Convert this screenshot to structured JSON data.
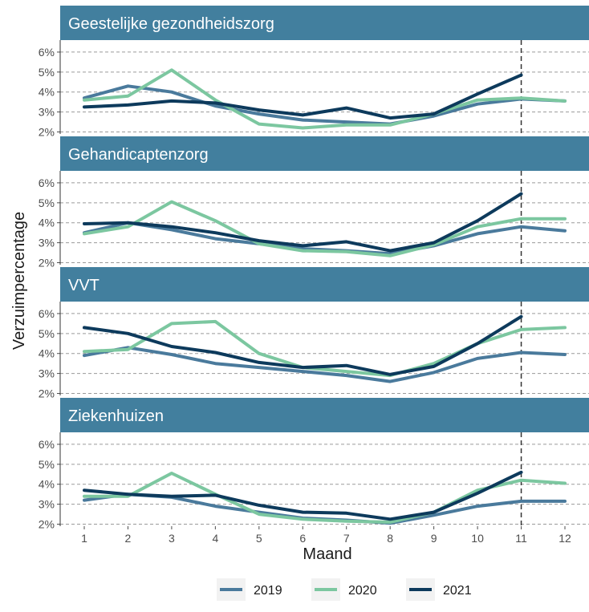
{
  "chart_data": {
    "type": "line",
    "xlabel": "Maand",
    "ylabel": "Verzuimpercentage",
    "x": [
      1,
      2,
      3,
      4,
      5,
      6,
      7,
      8,
      9,
      10,
      11,
      12
    ],
    "x_ticks": [
      "1",
      "2",
      "3",
      "4",
      "5",
      "6",
      "7",
      "8",
      "9",
      "10",
      "11",
      "12"
    ],
    "y_ticks": [
      "2%",
      "3%",
      "4%",
      "5%",
      "6%"
    ],
    "ylim": [
      1.9,
      6.6
    ],
    "grid": true,
    "legend_position": "bottom",
    "vline_x": 11,
    "colors": {
      "strip": "#427f9e",
      "2019": "#4a7a9c",
      "2020": "#7cc7a0",
      "2021": "#0d3a5c",
      "grid": "#9a9a9a",
      "vline": "#333333"
    },
    "legend": [
      "2019",
      "2020",
      "2021"
    ],
    "panels": [
      {
        "title": "Geestelijke gezondheidszorg",
        "series": [
          {
            "name": "2019",
            "values": [
              3.7,
              4.3,
              4.0,
              3.3,
              2.9,
              2.6,
              2.5,
              2.4,
              2.8,
              3.4,
              3.65,
              3.55
            ]
          },
          {
            "name": "2020",
            "values": [
              3.6,
              3.8,
              5.1,
              3.6,
              2.4,
              2.2,
              2.35,
              2.35,
              2.9,
              3.6,
              3.7,
              3.55
            ]
          },
          {
            "name": "2021",
            "values": [
              3.25,
              3.35,
              3.55,
              3.45,
              3.1,
              2.85,
              3.2,
              2.7,
              2.9,
              3.9,
              4.85,
              null
            ]
          }
        ]
      },
      {
        "title": "Gehandicaptenzorg",
        "series": [
          {
            "name": "2019",
            "values": [
              3.5,
              4.0,
              3.65,
              3.2,
              2.95,
              2.7,
              2.6,
              2.45,
              2.85,
              3.45,
              3.8,
              3.6
            ]
          },
          {
            "name": "2020",
            "values": [
              3.45,
              3.8,
              5.05,
              4.1,
              2.95,
              2.6,
              2.55,
              2.35,
              2.9,
              3.8,
              4.2,
              4.2
            ]
          },
          {
            "name": "2021",
            "values": [
              3.95,
              4.0,
              3.8,
              3.5,
              3.1,
              2.85,
              3.05,
              2.6,
              3.0,
              4.1,
              5.45,
              null
            ]
          }
        ]
      },
      {
        "title": "VVT",
        "series": [
          {
            "name": "2019",
            "values": [
              3.9,
              4.3,
              3.95,
              3.5,
              3.3,
              3.1,
              2.9,
              2.6,
              3.05,
              3.75,
              4.05,
              3.95
            ]
          },
          {
            "name": "2020",
            "values": [
              4.1,
              4.2,
              5.5,
              5.6,
              4.0,
              3.3,
              3.1,
              2.9,
              3.5,
              4.5,
              5.2,
              5.3
            ]
          },
          {
            "name": "2021",
            "values": [
              5.3,
              5.0,
              4.35,
              4.05,
              3.55,
              3.3,
              3.4,
              2.95,
              3.35,
              4.5,
              5.85,
              null
            ]
          }
        ]
      },
      {
        "title": "Ziekenhuizen",
        "series": [
          {
            "name": "2019",
            "values": [
              3.2,
              3.5,
              3.35,
              2.9,
              2.6,
              2.3,
              2.2,
              2.05,
              2.45,
              2.9,
              3.15,
              3.15
            ]
          },
          {
            "name": "2020",
            "values": [
              3.4,
              3.4,
              4.55,
              3.5,
              2.5,
              2.25,
              2.15,
              2.1,
              2.6,
              3.7,
              4.2,
              4.05
            ]
          },
          {
            "name": "2021",
            "values": [
              3.7,
              3.5,
              3.4,
              3.45,
              2.95,
              2.6,
              2.55,
              2.25,
              2.6,
              3.55,
              4.6,
              null
            ]
          }
        ]
      }
    ]
  }
}
